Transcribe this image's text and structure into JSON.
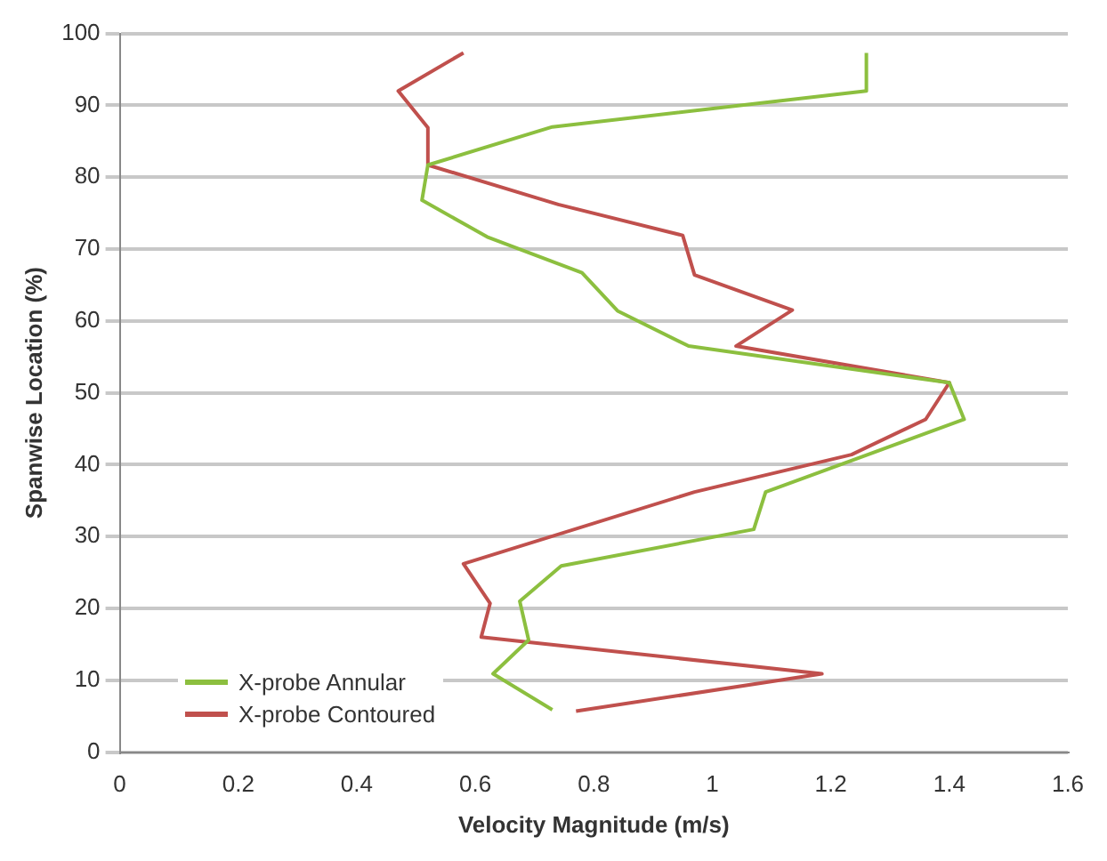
{
  "chart_data": {
    "type": "line",
    "xlabel": "Velocity Magnitude (m/s)",
    "ylabel": "Spanwise Location (%)",
    "xlim": [
      0,
      1.6
    ],
    "xticks": [
      0,
      0.2,
      0.4,
      0.6,
      0.8,
      1,
      1.2,
      1.4,
      1.6
    ],
    "ylim": [
      0,
      100
    ],
    "yticks": [
      0,
      10,
      20,
      30,
      40,
      50,
      60,
      70,
      80,
      90,
      100
    ],
    "grid": "y",
    "legend": "bottom left",
    "marker": "none",
    "line_style": "solid",
    "series": [
      {
        "name": "X-probe Annular",
        "color": "#8cbf3f",
        "x": [
          0.73,
          0.63,
          0.69,
          0.675,
          0.745,
          1.07,
          1.09,
          1.425,
          1.4,
          0.96,
          0.84,
          0.78,
          0.62,
          0.51,
          0.52,
          0.73,
          1.26,
          1.26
        ],
        "values": [
          5.9,
          10.9,
          15.6,
          21,
          25.9,
          31,
          36.2,
          46.3,
          51.4,
          56.5,
          61.4,
          66.7,
          71.7,
          76.8,
          81.7,
          87,
          92,
          97.3
        ]
      },
      {
        "name": "X-probe Contoured",
        "color": "#c0504d",
        "x": [
          0.77,
          1.185,
          0.61,
          0.625,
          0.58,
          0.97,
          1.235,
          1.36,
          1.4,
          1.04,
          1.135,
          0.97,
          0.95,
          0.74,
          0.52,
          0.52,
          0.47,
          0.58
        ],
        "values": [
          5.7,
          10.9,
          16,
          20.7,
          26.2,
          36.2,
          41.4,
          46.3,
          51.4,
          56.5,
          61.5,
          66.4,
          71.9,
          76.2,
          81.7,
          86.9,
          92,
          97.3
        ]
      }
    ]
  }
}
